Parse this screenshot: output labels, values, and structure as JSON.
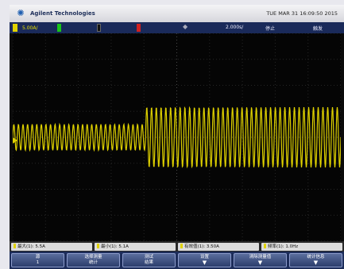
{
  "header": {
    "brand": "Agilent Technologies",
    "datetime": "TUE MAR 31 16:09:50 2015"
  },
  "status": {
    "ch1_scale": "5.00A/",
    "timebase": "2.000s/",
    "run_state": "停止",
    "trigger_label": "触发"
  },
  "measurements": [
    {
      "label": "最大(1): 5.5A"
    },
    {
      "label": "最小(1): 5.1A"
    },
    {
      "label": "有效值(1): 3.50A"
    },
    {
      "label": "频率(1): 1.0Hz"
    }
  ],
  "softkeys": [
    {
      "label": "源",
      "sub": "1"
    },
    {
      "label": "选择测量",
      "sub": "统计"
    },
    {
      "label": "测试",
      "sub": "结果"
    },
    {
      "label": "设置",
      "sub": ""
    },
    {
      "label": "清除测量值",
      "sub": ""
    },
    {
      "label": "统计信息",
      "sub": ""
    }
  ],
  "colors": {
    "ch1": "#e0d200",
    "ch2": "#19c519",
    "ch4": "#d02020",
    "status_bg": "#1a2a5a"
  },
  "waveform": {
    "low_amplitude_cycles": 29,
    "high_amplitude_cycles": 41,
    "step_fraction": 0.405,
    "low_amplitude": 0.25,
    "high_amplitude": 0.58
  }
}
